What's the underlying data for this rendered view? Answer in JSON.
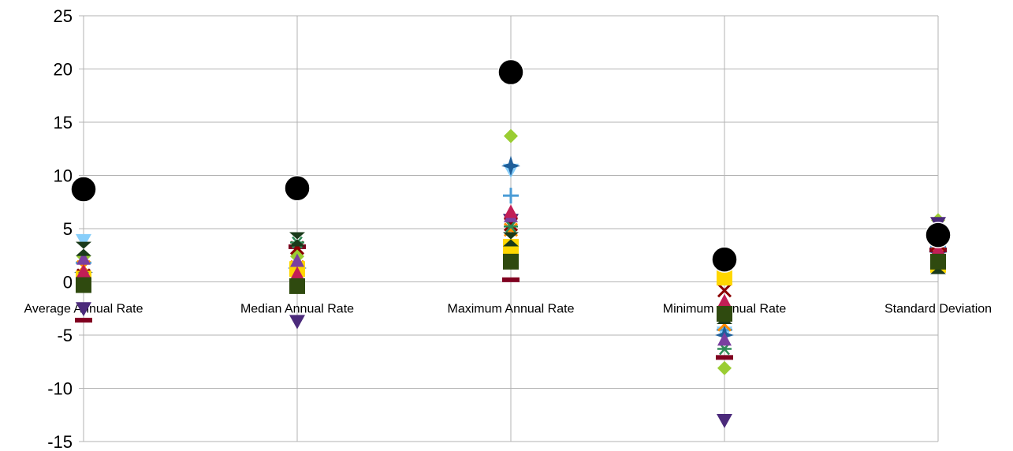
{
  "chart_data": {
    "type": "scatter",
    "title": "",
    "xlabel": "",
    "ylabel": "",
    "categories": [
      "Average Annual Rate",
      "Median Annual Rate",
      "Maximum Annual Rate",
      "Minimum Annual Rate",
      "Standard Deviation"
    ],
    "ylim": [
      -15,
      25
    ],
    "yticks": [
      -15,
      -10,
      -5,
      0,
      5,
      10,
      15,
      20,
      25
    ],
    "grid": true,
    "legend": "none",
    "series": [
      {
        "marker": "circle",
        "color": "#000000",
        "values": [
          8.7,
          8.8,
          19.7,
          2.1,
          4.4
        ]
      },
      {
        "marker": "diamond",
        "color": "#9acd32",
        "values": [
          2.4,
          2.4,
          13.7,
          -8.1,
          5.8
        ]
      },
      {
        "marker": "triangle-down",
        "color": "#4b2a7b",
        "values": [
          -2.5,
          -3.7,
          5.8,
          -13.0,
          5.5
        ]
      },
      {
        "marker": "triangle-down",
        "color": "#87cefa",
        "values": [
          3.9,
          1.0,
          10.5,
          -4.8,
          3.8
        ]
      },
      {
        "marker": "plus",
        "color": "#4a9cd6",
        "values": [
          1.8,
          0.9,
          8.1,
          -4.5,
          3.3
        ]
      },
      {
        "marker": "star4",
        "color": "#1f5f9a",
        "values": [
          0.9,
          1.3,
          10.9,
          -5.0,
          2.8
        ]
      },
      {
        "marker": "dash",
        "color": "#800020",
        "values": [
          -3.6,
          3.3,
          0.2,
          -7.1,
          3.0
        ]
      },
      {
        "marker": "x",
        "color": "#ff8c00",
        "values": [
          1.4,
          1.4,
          4.9,
          -4.0,
          2.6
        ]
      },
      {
        "marker": "x",
        "color": "#8b0000",
        "values": [
          0.6,
          3.2,
          5.4,
          -0.8,
          3.6
        ]
      },
      {
        "marker": "square",
        "color": "#ffd700",
        "values": [
          0.3,
          1.2,
          3.3,
          0.4,
          1.6
        ]
      },
      {
        "marker": "asterisk",
        "color": "#2e8b57",
        "values": [
          0.4,
          3.7,
          5.2,
          -6.3,
          2.3
        ]
      },
      {
        "marker": "triangle",
        "color": "#7b3fa0",
        "values": [
          2.2,
          2.0,
          6.2,
          -5.4,
          4.8
        ]
      },
      {
        "marker": "triangle",
        "color": "#c21e56",
        "values": [
          1.0,
          0.8,
          6.6,
          -1.8,
          3.1
        ]
      },
      {
        "marker": "bowtie",
        "color": "#1a3a1a",
        "values": [
          3.1,
          4.0,
          4.0,
          -3.3,
          1.4
        ]
      },
      {
        "marker": "square",
        "color": "#2f4a0f",
        "values": [
          -0.3,
          -0.4,
          1.9,
          -3.0,
          1.9
        ]
      }
    ]
  }
}
